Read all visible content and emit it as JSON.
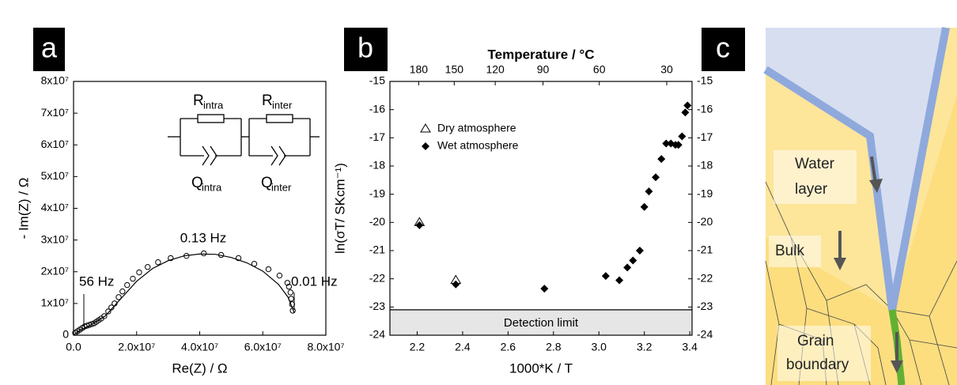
{
  "panel_labels": [
    "a",
    "b",
    "c"
  ],
  "chart_data": [
    {
      "type": "scatter",
      "xlabel": "Re(Z) / Ω",
      "ylabel": "- Im(Z) / Ω",
      "xlim": [
        0,
        80000000
      ],
      "ylim": [
        0,
        80000000
      ],
      "xticks": [
        {
          "value": 0,
          "label": "0.0"
        },
        {
          "value": 20000000,
          "label": "2.0x10⁷"
        },
        {
          "value": 40000000,
          "label": "4.0x10⁷"
        },
        {
          "value": 60000000,
          "label": "6.0x10⁷"
        },
        {
          "value": 80000000,
          "label": "8.0x10⁷"
        }
      ],
      "yticks": [
        0,
        {
          "value": 10000000,
          "label": "1x10⁷"
        },
        {
          "value": 20000000,
          "label": "2x10⁷"
        },
        {
          "value": 30000000,
          "label": "3x10⁷"
        },
        {
          "value": 40000000,
          "label": "4x10⁷"
        },
        {
          "value": 50000000,
          "label": "5x10⁷"
        },
        {
          "value": 60000000,
          "label": "6x10⁷"
        },
        {
          "value": 70000000,
          "label": "7x10⁷"
        },
        {
          "value": 80000000,
          "label": "8x10⁷"
        }
      ],
      "series": [
        {
          "marker": "open-circle",
          "color": "#000000",
          "x": [
            500000,
            1250000,
            2000000,
            2750000,
            3500000,
            4250000,
            5000000,
            5750000,
            6500000,
            7250000,
            8000000,
            8750000,
            9750000,
            11000000,
            12000000,
            13000000,
            14300000,
            15500000,
            17000000,
            18800000,
            20800000,
            23500000,
            26800000,
            30800000,
            35800000,
            41300000,
            46800000,
            52300000,
            57300000,
            61800000,
            65300000,
            67800000,
            68300000,
            68800000,
            69000000,
            69300000,
            69500000
          ],
          "values": [
            750000,
            1250000,
            1750000,
            2250000,
            2750000,
            3000000,
            3250000,
            3500000,
            3750000,
            4250000,
            4750000,
            5250000,
            6000000,
            7500000,
            8750000,
            10000000,
            12000000,
            13800000,
            15800000,
            17800000,
            19800000,
            21500000,
            23000000,
            24300000,
            25000000,
            25800000,
            25300000,
            24300000,
            22500000,
            20800000,
            18800000,
            16500000,
            15300000,
            13500000,
            11500000,
            9750000,
            7750000
          ]
        },
        {
          "marker": "line",
          "color": "#000000",
          "x": [
            0,
            2000000,
            5000000,
            10000000,
            15000000,
            20000000,
            25000000,
            30000000,
            35000000,
            40000000,
            45000000,
            50000000,
            55000000,
            60000000,
            65000000,
            68000000,
            70000000
          ],
          "values": [
            0,
            1500000,
            3000000,
            6000000,
            11500000,
            17000000,
            21000000,
            23500000,
            25000000,
            25600000,
            25500000,
            24500000,
            22800000,
            20200000,
            16000000,
            12000000,
            7000000
          ]
        }
      ],
      "annotations": [
        "56 Hz",
        "0.13 Hz",
        "0.01 Hz"
      ],
      "circuit": [
        {
          "main": "R",
          "sub": "intra"
        },
        {
          "main": "R",
          "sub": "inter"
        },
        {
          "main": "Q",
          "sub": "intra"
        },
        {
          "main": "Q",
          "sub": "inter"
        }
      ]
    },
    {
      "type": "scatter",
      "xlabel": "1000*K / T",
      "ylabel": "ln(σT/ SKcm⁻¹)",
      "x2label": "Temperature / °C",
      "xlim": [
        2.08,
        3.41
      ],
      "ylim": [
        -24,
        -15
      ],
      "y2lim": [
        -24,
        -15
      ],
      "xticks": [
        2.2,
        2.4,
        2.6,
        2.8,
        {
          "value": 3,
          "label": "3.0"
        },
        3.2,
        3.4
      ],
      "yticks": [
        -24,
        -23,
        -22,
        -21,
        -20,
        -19,
        -18,
        -17,
        -16,
        -15
      ],
      "y2ticks": [
        -24,
        -23,
        -22,
        -21,
        -20,
        -19,
        -18,
        -17,
        -16,
        -15
      ],
      "x2ticks": [
        180,
        150,
        120,
        90,
        60,
        30
      ],
      "x2_scale": "celsius-to-1000-per-kelvin",
      "legend": "upper left",
      "detection_limit": {
        "value": -23.1,
        "label": "Detection limit"
      },
      "series": [
        {
          "name": "Dry atmosphere",
          "marker": "open-triangle",
          "color": "#000000",
          "x": [
            2.21,
            2.37
          ],
          "values": [
            -20.0,
            -22.05
          ]
        },
        {
          "name": "Wet atmosphere",
          "marker": "filled-diamond",
          "color": "#000000",
          "x": [
            2.21,
            2.37,
            2.76,
            3.03,
            3.09,
            3.125,
            3.15,
            3.18,
            3.2,
            3.22,
            3.25,
            3.275,
            3.296,
            3.317,
            3.337,
            3.35,
            3.366,
            3.38,
            3.39
          ],
          "values": [
            -20.1,
            -22.2,
            -22.35,
            -21.9,
            -22.05,
            -21.6,
            -21.35,
            -21.0,
            -19.45,
            -18.9,
            -18.4,
            -17.75,
            -17.2,
            -17.2,
            -17.25,
            -17.25,
            -16.95,
            -16.1,
            -15.85
          ]
        }
      ]
    }
  ],
  "diagram": {
    "labels": [
      [
        "Water",
        "layer"
      ],
      [
        "Bulk"
      ],
      [
        "Grain",
        "boundary"
      ]
    ]
  }
}
